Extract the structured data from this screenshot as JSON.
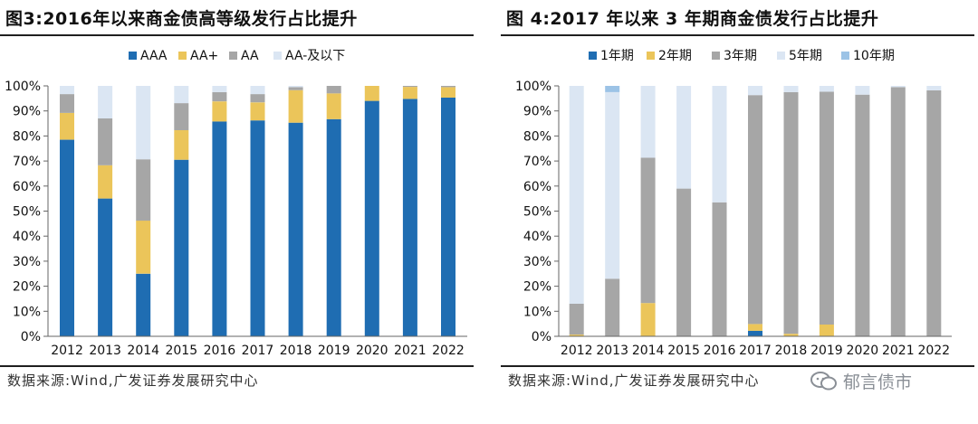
{
  "colors": {
    "dark_blue": "#1f6db2",
    "yellow": "#ebc55a",
    "gray": "#a6a6a6",
    "light_blue": "#dbe6f3",
    "sky_blue": "#9cc3e6"
  },
  "watermark": {
    "text": "郁言债市",
    "icon": "chat-bubble-icon"
  },
  "chart_data": [
    {
      "type": "bar",
      "stacked": true,
      "title": "图3:2016年以来商金债高等级发行占比提升",
      "source": "数据来源:Wind,广发证券发展研究中心",
      "categories": [
        "2012",
        "2013",
        "2014",
        "2015",
        "2016",
        "2017",
        "2018",
        "2019",
        "2020",
        "2021",
        "2022"
      ],
      "y_ticks": [
        "0%",
        "10%",
        "20%",
        "30%",
        "40%",
        "50%",
        "60%",
        "70%",
        "80%",
        "90%",
        "100%"
      ],
      "ylim": [
        0,
        100
      ],
      "legend_position": "top",
      "series": [
        {
          "name": "AAA",
          "color": "#1f6db2",
          "values": [
            78.5,
            55,
            25,
            70.5,
            85.8,
            86.2,
            85.3,
            86.7,
            94,
            94.8,
            95.3
          ]
        },
        {
          "name": "AA+",
          "color": "#ebc55a",
          "values": [
            10.7,
            13.3,
            21.2,
            11.8,
            8,
            7.2,
            13,
            10.3,
            6,
            4.8,
            4.2
          ]
        },
        {
          "name": "AA",
          "color": "#a6a6a6",
          "values": [
            7.5,
            18.7,
            24.5,
            10.8,
            3.7,
            3.3,
            1.2,
            3,
            0,
            0.4,
            0.5
          ]
        },
        {
          "name": "AA-及以下",
          "color": "#dbe6f3",
          "values": [
            3.3,
            13,
            29.3,
            6.9,
            2.5,
            3.3,
            0.5,
            0,
            0,
            0,
            0
          ]
        }
      ]
    },
    {
      "type": "bar",
      "stacked": true,
      "title": "图 4:2017 年以来 3 年期商金债发行占比提升",
      "source": "数据来源:Wind,广发证券发展研究中心",
      "categories": [
        "2012",
        "2013",
        "2014",
        "2015",
        "2016",
        "2017",
        "2018",
        "2019",
        "2020",
        "2021",
        "2022"
      ],
      "y_ticks": [
        "0%",
        "10%",
        "20%",
        "30%",
        "40%",
        "50%",
        "60%",
        "70%",
        "80%",
        "90%",
        "100%"
      ],
      "ylim": [
        0,
        100
      ],
      "legend_position": "top",
      "series": [
        {
          "name": "1年期",
          "color": "#1f6db2",
          "values": [
            0,
            0,
            0,
            0,
            0,
            2.2,
            0,
            0,
            0,
            0,
            0
          ]
        },
        {
          "name": "2年期",
          "color": "#ebc55a",
          "values": [
            0.7,
            0,
            13.3,
            0,
            0,
            2.7,
            1,
            4.7,
            0,
            0,
            0
          ]
        },
        {
          "name": "3年期",
          "color": "#a6a6a6",
          "values": [
            12.3,
            23,
            58,
            59,
            53.5,
            91.4,
            96.5,
            93,
            96.5,
            99.5,
            98.2
          ]
        },
        {
          "name": "5年期",
          "color": "#dbe6f3",
          "values": [
            87,
            74.5,
            28.7,
            41,
            46.5,
            3.7,
            2.5,
            2.3,
            3.5,
            0.5,
            1.8
          ]
        },
        {
          "name": "10年期",
          "color": "#9cc3e6",
          "values": [
            0,
            2.5,
            0,
            0,
            0,
            0,
            0,
            0,
            0,
            0,
            0
          ]
        }
      ]
    }
  ]
}
